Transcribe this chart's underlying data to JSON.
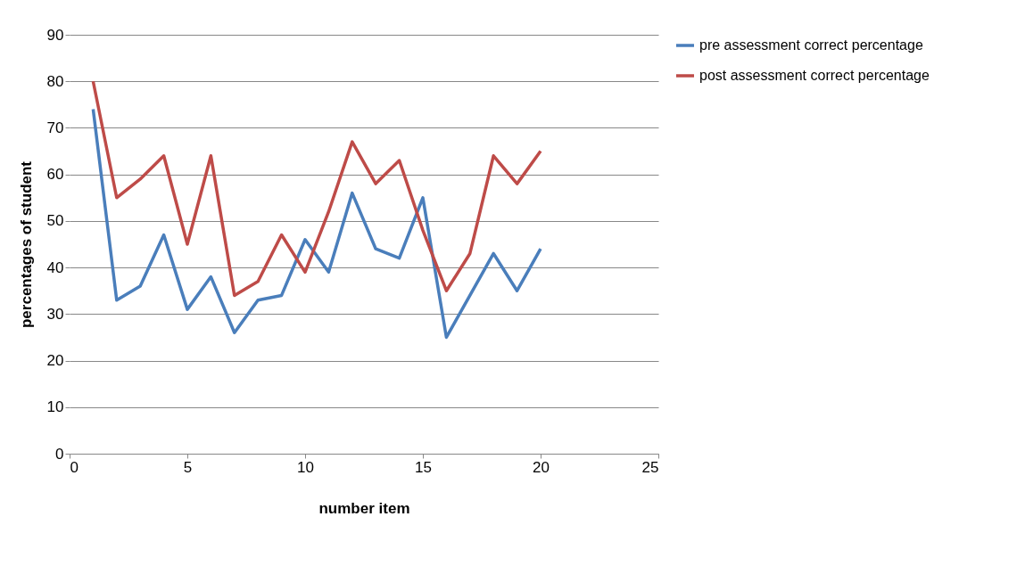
{
  "chart_data": {
    "type": "line",
    "xlabel": "number item",
    "ylabel": "percentages of student",
    "x": [
      1,
      2,
      3,
      4,
      5,
      6,
      7,
      8,
      9,
      10,
      11,
      12,
      13,
      14,
      15,
      16,
      17,
      18,
      19,
      20
    ],
    "series": [
      {
        "name": "pre assessment correct percentage",
        "color": "#4a7ebb",
        "values": [
          74,
          33,
          36,
          47,
          31,
          38,
          26,
          33,
          34,
          46,
          39,
          56,
          44,
          42,
          55,
          25,
          34,
          43,
          35,
          44
        ]
      },
      {
        "name": "post assessment correct percentage",
        "color": "#be4b48",
        "values": [
          80,
          55,
          59,
          64,
          45,
          64,
          34,
          37,
          47,
          39,
          52,
          67,
          58,
          63,
          48,
          35,
          43,
          64,
          58,
          65
        ]
      }
    ],
    "xlim": [
      0,
      25
    ],
    "xticks": [
      0,
      5,
      10,
      15,
      20,
      25
    ],
    "ylim": [
      0,
      90
    ],
    "yticks": [
      0,
      10,
      20,
      30,
      40,
      50,
      60,
      70,
      80,
      90
    ],
    "grid": "y",
    "legend": "right",
    "marker": "none",
    "line_style": "solid"
  }
}
